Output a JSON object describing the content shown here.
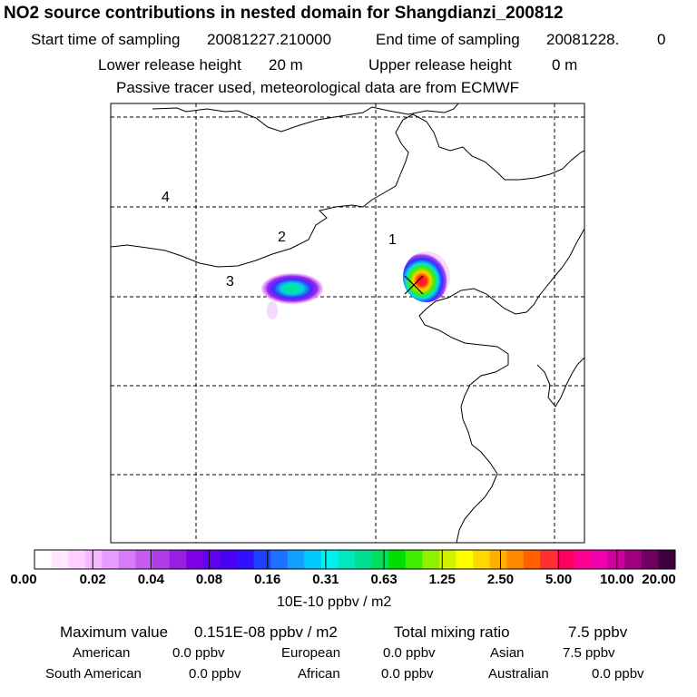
{
  "header": {
    "title": "NO2 source contributions in nested domain for Shangdianzi_200812",
    "start_label": "Start time of sampling",
    "start_value": "20081227.210000",
    "end_label": "End time of sampling",
    "end_value": "20081228.",
    "end_suffix": "0",
    "lower_label": "Lower release height",
    "lower_value": "20 m",
    "upper_label": "Upper release height",
    "upper_value": "0 m",
    "note": "Passive tracer used, meteorological data are from ECMWF"
  },
  "map": {
    "region_labels": [
      "1",
      "2",
      "3",
      "4"
    ],
    "receptor_marker": "x-marker-icon"
  },
  "colorbar": {
    "ticks": [
      "0.00",
      "0.02",
      "0.04",
      "0.08",
      "0.16",
      "0.31",
      "0.63",
      "1.25",
      "2.50",
      "5.00",
      "10.00",
      "20.00"
    ],
    "unit": "10E-10 ppbv / m2",
    "colors": [
      "#ffffff",
      "#ffe8ff",
      "#ffd0ff",
      "#f8b8ff",
      "#e89cff",
      "#d77cf8",
      "#c45cf0",
      "#b03ce8",
      "#9a1ee4",
      "#8000e8",
      "#6400f0",
      "#4a00f4",
      "#3010ff",
      "#2040ff",
      "#2070ff",
      "#10a0ff",
      "#00c8ff",
      "#00f0f0",
      "#00e8c0",
      "#00e090",
      "#00e060",
      "#00e000",
      "#40ec00",
      "#90f000",
      "#d0f400",
      "#ffff00",
      "#ffd800",
      "#ffb000",
      "#ff8800",
      "#ff6000",
      "#ff3030",
      "#ff0060",
      "#ff0090",
      "#f000b0",
      "#d000a0",
      "#a00080",
      "#700060",
      "#400040"
    ]
  },
  "footer": {
    "max_label": "Maximum value",
    "max_value": "0.151E-08 ppbv / m2",
    "total_label": "Total mixing ratio",
    "total_value": "7.5 ppbv",
    "regions": [
      {
        "name": "American",
        "value": "0.0 ppbv"
      },
      {
        "name": "European",
        "value": "0.0 ppbv"
      },
      {
        "name": "Asian",
        "value": "7.5 ppbv"
      },
      {
        "name": "South American",
        "value": "0.0 ppbv"
      },
      {
        "name": "African",
        "value": "0.0 ppbv"
      },
      {
        "name": "Australian",
        "value": "0.0 ppbv"
      }
    ]
  }
}
